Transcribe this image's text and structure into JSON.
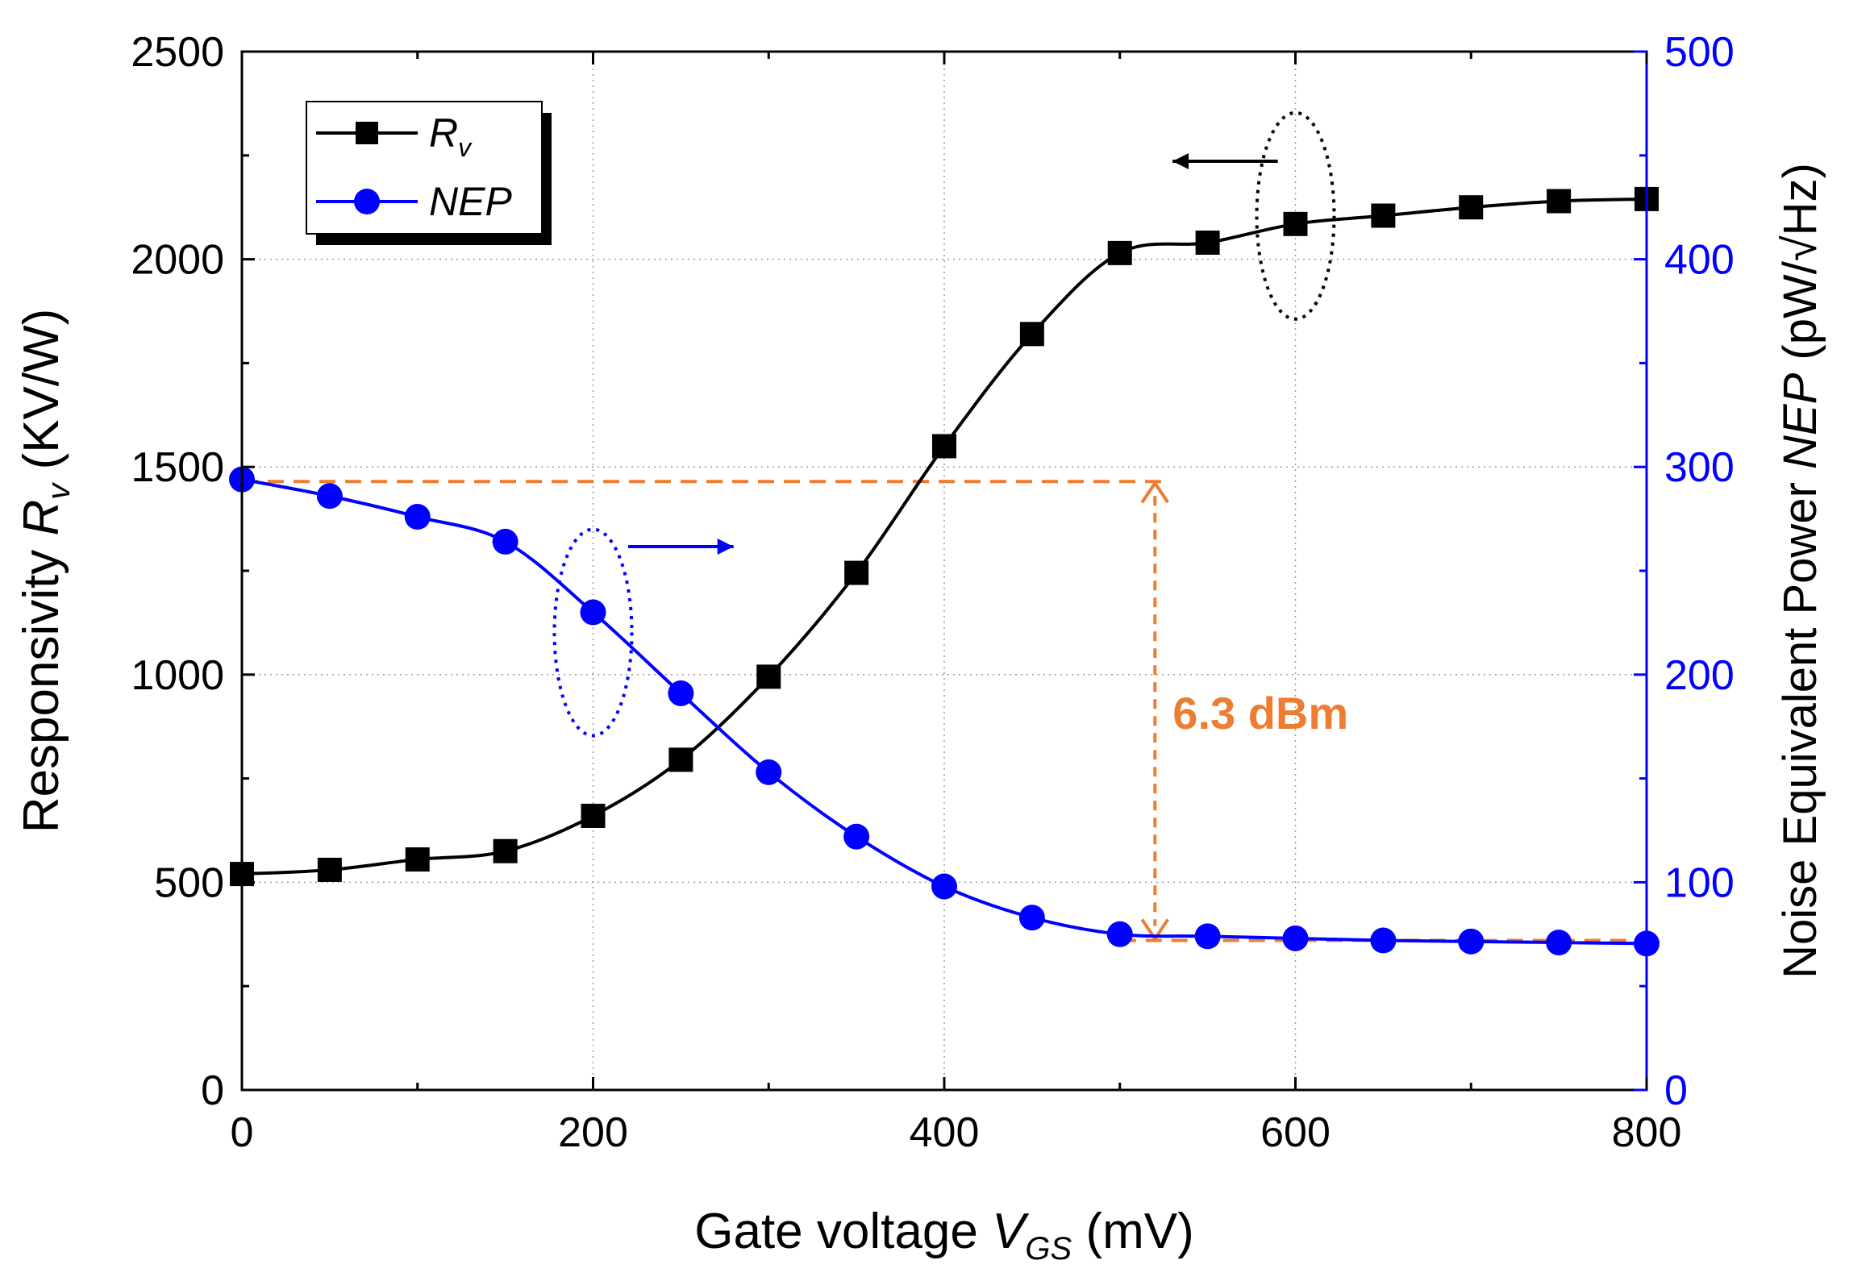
{
  "chart_data": {
    "type": "line",
    "xlabel": "Gate voltage",
    "xlabel_symbol": "V",
    "xlabel_sub": "GS",
    "xlabel_unit": "(mV)",
    "ylabel_left": "Responsivity",
    "ylabel_left_symbol": "R",
    "ylabel_left_sub": "v",
    "ylabel_left_unit": "(KV/W)",
    "ylabel_right": "Noise Equivalent Power",
    "ylabel_right_symbol": "NEP",
    "ylabel_right_unit": "(pW/√Hz)",
    "xlim": [
      0,
      800
    ],
    "ylim_left": [
      0,
      2500
    ],
    "ylim_right": [
      0,
      500
    ],
    "xticks": [
      "0",
      "200",
      "400",
      "600",
      "800"
    ],
    "yticks_left": [
      "0",
      "500",
      "1000",
      "1500",
      "2000",
      "2500"
    ],
    "yticks_right": [
      "0",
      "100",
      "200",
      "300",
      "400",
      "500"
    ],
    "grid": true,
    "legend_position": "top-left",
    "series": [
      {
        "name": "R",
        "name_sub": "v",
        "axis": "left",
        "marker": "square",
        "color": "#000000",
        "x": [
          0,
          50,
          100,
          150,
          200,
          250,
          300,
          350,
          400,
          450,
          500,
          550,
          600,
          650,
          700,
          750,
          800
        ],
        "values": [
          520,
          530,
          555,
          575,
          660,
          795,
          995,
          1245,
          1550,
          1820,
          2015,
          2040,
          2085,
          2105,
          2125,
          2140,
          2145
        ]
      },
      {
        "name": "NEP",
        "axis": "right",
        "marker": "circle",
        "color": "#0000ff",
        "x": [
          0,
          50,
          100,
          150,
          200,
          250,
          300,
          350,
          400,
          450,
          500,
          550,
          600,
          650,
          700,
          750,
          800
        ],
        "values": [
          294,
          286,
          276,
          264,
          230,
          191,
          153,
          122,
          98,
          83,
          75,
          74,
          73,
          72,
          71.5,
          71,
          70.5
        ]
      }
    ],
    "annotation": {
      "label": "6.3 dBm",
      "color": "#ed7d31",
      "upper_level_right": 293,
      "lower_level_right": 72,
      "arrow_x": 520
    }
  }
}
